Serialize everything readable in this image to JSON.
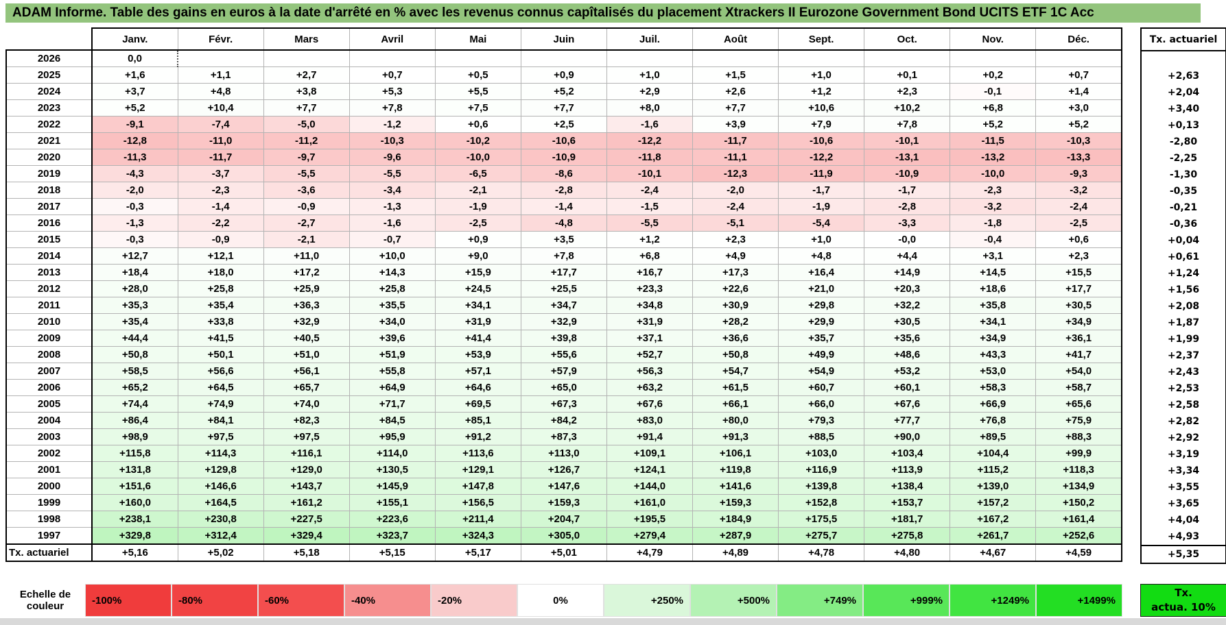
{
  "title": "ADAM Informe. Table des gains en euros à la date d'arrêté en % avec les revenus connus capîtalisés du placement Xtrackers II Eurozone Government Bond UCITS ETF 1C Acc",
  "columns": [
    "Janv.",
    "Févr.",
    "Mars",
    "Avril",
    "Mai",
    "Juin",
    "Juil.",
    "Août",
    "Sept.",
    "Oct.",
    "Nov.",
    "Déc."
  ],
  "tx_col_header": "Tx. actuariel",
  "rows": [
    {
      "year": "2026",
      "values": [
        "0,0",
        "",
        "",
        "",
        "",
        "",
        "",
        "",
        "",
        "",
        "",
        ""
      ],
      "tx": ""
    },
    {
      "year": "2025",
      "values": [
        "+1,6",
        "+1,1",
        "+2,7",
        "+0,7",
        "+0,5",
        "+0,9",
        "+1,0",
        "+1,5",
        "+1,0",
        "+0,1",
        "+0,2",
        "+0,7"
      ],
      "tx": "+2,63"
    },
    {
      "year": "2024",
      "values": [
        "+3,7",
        "+4,8",
        "+3,8",
        "+5,3",
        "+5,5",
        "+5,2",
        "+2,9",
        "+2,6",
        "+1,2",
        "+2,3",
        "-0,1",
        "+1,4"
      ],
      "tx": "+2,04"
    },
    {
      "year": "2023",
      "values": [
        "+5,2",
        "+10,4",
        "+7,7",
        "+7,8",
        "+7,5",
        "+7,7",
        "+8,0",
        "+7,7",
        "+10,6",
        "+10,2",
        "+6,8",
        "+3,0"
      ],
      "tx": "+3,40"
    },
    {
      "year": "2022",
      "values": [
        "-9,1",
        "-7,4",
        "-5,0",
        "-1,2",
        "+0,6",
        "+2,5",
        "-1,6",
        "+3,9",
        "+7,9",
        "+7,8",
        "+5,2",
        "+5,2"
      ],
      "tx": "+0,13"
    },
    {
      "year": "2021",
      "values": [
        "-12,8",
        "-11,0",
        "-11,2",
        "-10,3",
        "-10,2",
        "-10,6",
        "-12,2",
        "-11,7",
        "-10,6",
        "-10,1",
        "-11,5",
        "-10,3"
      ],
      "tx": "-2,80"
    },
    {
      "year": "2020",
      "values": [
        "-11,3",
        "-11,7",
        "-9,7",
        "-9,6",
        "-10,0",
        "-10,9",
        "-11,8",
        "-11,1",
        "-12,2",
        "-13,1",
        "-13,2",
        "-13,3"
      ],
      "tx": "-2,25"
    },
    {
      "year": "2019",
      "values": [
        "-4,3",
        "-3,7",
        "-5,5",
        "-5,5",
        "-6,5",
        "-8,6",
        "-10,1",
        "-12,3",
        "-11,9",
        "-10,9",
        "-10,0",
        "-9,3"
      ],
      "tx": "-1,30"
    },
    {
      "year": "2018",
      "values": [
        "-2,0",
        "-2,3",
        "-3,6",
        "-3,4",
        "-2,1",
        "-2,8",
        "-2,4",
        "-2,0",
        "-1,7",
        "-1,7",
        "-2,3",
        "-3,2"
      ],
      "tx": "-0,35"
    },
    {
      "year": "2017",
      "values": [
        "-0,3",
        "-1,4",
        "-0,9",
        "-1,3",
        "-1,9",
        "-1,4",
        "-1,5",
        "-2,4",
        "-1,9",
        "-2,8",
        "-3,2",
        "-2,4"
      ],
      "tx": "-0,21"
    },
    {
      "year": "2016",
      "values": [
        "-1,3",
        "-2,2",
        "-2,7",
        "-1,6",
        "-2,5",
        "-4,8",
        "-5,5",
        "-5,1",
        "-5,4",
        "-3,3",
        "-1,8",
        "-2,5"
      ],
      "tx": "-0,36"
    },
    {
      "year": "2015",
      "values": [
        "-0,3",
        "-0,9",
        "-2,1",
        "-0,7",
        "+0,9",
        "+3,5",
        "+1,2",
        "+2,3",
        "+1,0",
        "-0,0",
        "-0,4",
        "+0,6"
      ],
      "tx": "+0,04"
    },
    {
      "year": "2014",
      "values": [
        "+12,7",
        "+12,1",
        "+11,0",
        "+10,0",
        "+9,0",
        "+7,8",
        "+6,8",
        "+4,9",
        "+4,8",
        "+4,4",
        "+3,1",
        "+2,3"
      ],
      "tx": "+0,61"
    },
    {
      "year": "2013",
      "values": [
        "+18,4",
        "+18,0",
        "+17,2",
        "+14,3",
        "+15,9",
        "+17,7",
        "+16,7",
        "+17,3",
        "+16,4",
        "+14,9",
        "+14,5",
        "+15,5"
      ],
      "tx": "+1,24"
    },
    {
      "year": "2012",
      "values": [
        "+28,0",
        "+25,8",
        "+25,9",
        "+25,8",
        "+24,5",
        "+25,5",
        "+23,3",
        "+22,6",
        "+21,0",
        "+20,3",
        "+18,6",
        "+17,7"
      ],
      "tx": "+1,56"
    },
    {
      "year": "2011",
      "values": [
        "+35,3",
        "+35,4",
        "+36,3",
        "+35,5",
        "+34,1",
        "+34,7",
        "+34,8",
        "+30,9",
        "+29,8",
        "+32,2",
        "+35,8",
        "+30,5"
      ],
      "tx": "+2,08"
    },
    {
      "year": "2010",
      "values": [
        "+35,4",
        "+33,8",
        "+32,9",
        "+34,0",
        "+31,9",
        "+32,9",
        "+31,9",
        "+28,2",
        "+29,9",
        "+30,5",
        "+34,1",
        "+34,9"
      ],
      "tx": "+1,87"
    },
    {
      "year": "2009",
      "values": [
        "+44,4",
        "+41,5",
        "+40,5",
        "+39,6",
        "+41,4",
        "+39,8",
        "+37,1",
        "+36,6",
        "+35,7",
        "+35,6",
        "+34,9",
        "+36,1"
      ],
      "tx": "+1,99"
    },
    {
      "year": "2008",
      "values": [
        "+50,8",
        "+50,1",
        "+51,0",
        "+51,9",
        "+53,9",
        "+55,6",
        "+52,7",
        "+50,8",
        "+49,9",
        "+48,6",
        "+43,3",
        "+41,7"
      ],
      "tx": "+2,37"
    },
    {
      "year": "2007",
      "values": [
        "+58,5",
        "+56,6",
        "+56,1",
        "+55,8",
        "+57,1",
        "+57,9",
        "+56,3",
        "+54,7",
        "+54,9",
        "+53,2",
        "+53,0",
        "+54,0"
      ],
      "tx": "+2,43"
    },
    {
      "year": "2006",
      "values": [
        "+65,2",
        "+64,5",
        "+65,7",
        "+64,9",
        "+64,6",
        "+65,0",
        "+63,2",
        "+61,5",
        "+60,7",
        "+60,1",
        "+58,3",
        "+58,7"
      ],
      "tx": "+2,53"
    },
    {
      "year": "2005",
      "values": [
        "+74,4",
        "+74,9",
        "+74,0",
        "+71,7",
        "+69,5",
        "+67,3",
        "+67,6",
        "+66,1",
        "+66,0",
        "+67,6",
        "+66,9",
        "+65,6"
      ],
      "tx": "+2,58"
    },
    {
      "year": "2004",
      "values": [
        "+86,4",
        "+84,1",
        "+82,3",
        "+84,5",
        "+85,1",
        "+84,2",
        "+83,0",
        "+80,0",
        "+79,3",
        "+77,7",
        "+76,8",
        "+75,9"
      ],
      "tx": "+2,82"
    },
    {
      "year": "2003",
      "values": [
        "+98,9",
        "+97,5",
        "+97,5",
        "+95,9",
        "+91,2",
        "+87,3",
        "+91,4",
        "+91,3",
        "+88,5",
        "+90,0",
        "+89,5",
        "+88,3"
      ],
      "tx": "+2,92"
    },
    {
      "year": "2002",
      "values": [
        "+115,8",
        "+114,3",
        "+116,1",
        "+114,0",
        "+113,6",
        "+113,0",
        "+109,1",
        "+106,1",
        "+103,0",
        "+103,4",
        "+104,4",
        "+99,9"
      ],
      "tx": "+3,19"
    },
    {
      "year": "2001",
      "values": [
        "+131,8",
        "+129,8",
        "+129,0",
        "+130,5",
        "+129,1",
        "+126,7",
        "+124,1",
        "+119,8",
        "+116,9",
        "+113,9",
        "+115,2",
        "+118,3"
      ],
      "tx": "+3,34"
    },
    {
      "year": "2000",
      "values": [
        "+151,6",
        "+146,6",
        "+143,7",
        "+145,9",
        "+147,8",
        "+147,6",
        "+144,0",
        "+141,6",
        "+139,8",
        "+138,4",
        "+139,0",
        "+134,9"
      ],
      "tx": "+3,55"
    },
    {
      "year": "1999",
      "values": [
        "+160,0",
        "+164,5",
        "+161,2",
        "+155,1",
        "+156,5",
        "+159,3",
        "+161,0",
        "+159,3",
        "+152,8",
        "+153,7",
        "+157,2",
        "+150,2"
      ],
      "tx": "+3,65"
    },
    {
      "year": "1998",
      "values": [
        "+238,1",
        "+230,8",
        "+227,5",
        "+223,6",
        "+211,4",
        "+204,7",
        "+195,5",
        "+184,9",
        "+175,5",
        "+181,7",
        "+167,2",
        "+161,4"
      ],
      "tx": "+4,04"
    },
    {
      "year": "1997",
      "values": [
        "+329,8",
        "+312,4",
        "+329,4",
        "+323,7",
        "+324,3",
        "+305,0",
        "+279,4",
        "+287,9",
        "+275,7",
        "+275,8",
        "+261,7",
        "+252,6"
      ],
      "tx": "+4,93"
    }
  ],
  "tx_row": {
    "label": "Tx. actuariel",
    "values": [
      "+5,16",
      "+5,02",
      "+5,18",
      "+5,15",
      "+5,17",
      "+5,01",
      "+4,79",
      "+4,89",
      "+4,78",
      "+4,80",
      "+4,67",
      "+4,59"
    ],
    "tx": "+5,35"
  },
  "color_scale": {
    "label": "Echelle de couleur",
    "cells": [
      {
        "label": "-100%",
        "color": "#f03c3c",
        "align": "left"
      },
      {
        "label": "-80%",
        "color": "#f14343",
        "align": "left"
      },
      {
        "label": "-60%",
        "color": "#f34e4e",
        "align": "left"
      },
      {
        "label": "-40%",
        "color": "#f68e8e",
        "align": "left"
      },
      {
        "label": "-20%",
        "color": "#f9cbcb",
        "align": "left"
      },
      {
        "label": "0%",
        "color": "#ffffff",
        "align": "center"
      },
      {
        "label": "+250%",
        "color": "#daf7da",
        "align": "right"
      },
      {
        "label": "+500%",
        "color": "#b4f2b4",
        "align": "right"
      },
      {
        "label": "+749%",
        "color": "#84ec84",
        "align": "right"
      },
      {
        "label": "+999%",
        "color": "#58e758",
        "align": "right"
      },
      {
        "label": "+1249%",
        "color": "#41e441",
        "align": "right"
      },
      {
        "label": "+1499%",
        "color": "#23de23",
        "align": "right"
      }
    ],
    "tx_box": {
      "line1": "Tx.",
      "line2": "actua. 10%",
      "color": "#12dc12"
    }
  },
  "colors": {
    "title_bg": "#93c47d",
    "negative_full": "#f03c3c",
    "positive_full": "#28dd28"
  }
}
